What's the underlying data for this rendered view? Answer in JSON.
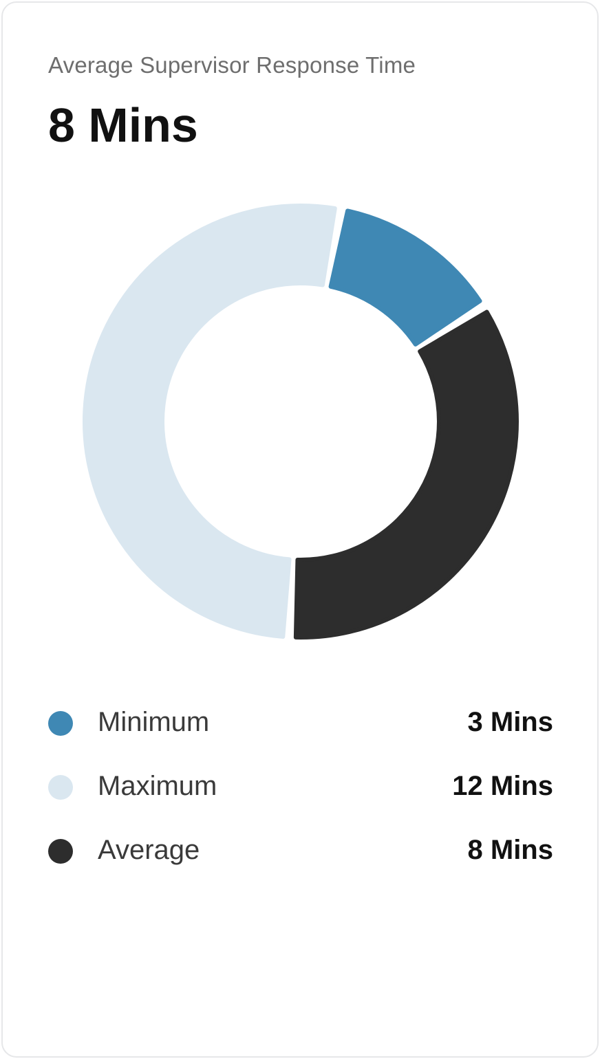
{
  "card": {
    "subtitle": "Average Supervisor Response Time",
    "headline": "8 Mins"
  },
  "chart_data": {
    "type": "pie",
    "style": "donut",
    "title": "Average Supervisor Response Time",
    "slices": [
      {
        "label": "Minimum",
        "value": 3,
        "display": "3 Mins",
        "color": "#3f88b4"
      },
      {
        "label": "Maximum",
        "value": 12,
        "display": "12 Mins",
        "color": "#dae7f0"
      },
      {
        "label": "Average",
        "value": 8,
        "display": "8 Mins",
        "color": "#2d2d2d"
      }
    ],
    "legend_position": "bottom"
  },
  "legend": [
    {
      "label": "Minimum",
      "value": "3 Mins",
      "color": "#3f88b4"
    },
    {
      "label": "Maximum",
      "value": "12 Mins",
      "color": "#dae7f0"
    },
    {
      "label": "Average",
      "value": "8 Mins",
      "color": "#2d2d2d"
    }
  ]
}
